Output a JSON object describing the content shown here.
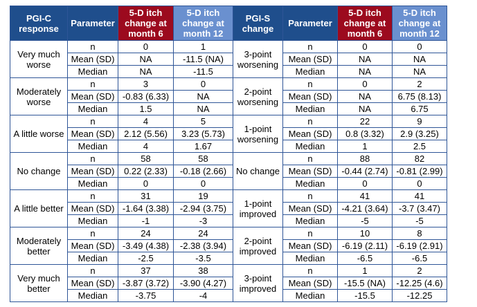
{
  "table": {
    "header": [
      "PGI-C response",
      "Parameter",
      "5-D itch change at month 6",
      "5-D itch change at month 12",
      "PGI-S change",
      "Parameter",
      "5-D itch change at month 6",
      "5-D itch change at month 12"
    ],
    "left": [
      {
        "label": "Very much worse",
        "rows": [
          [
            "n",
            "0",
            "1"
          ],
          [
            "Mean (SD)",
            "NA",
            "-11.5 (NA)"
          ],
          [
            "Median",
            "NA",
            "-11.5"
          ]
        ]
      },
      {
        "label": "Moderately worse",
        "rows": [
          [
            "n",
            "3",
            "0"
          ],
          [
            "Mean (SD)",
            "-0.83 (6.33)",
            "NA"
          ],
          [
            "Median",
            "1.5",
            "NA"
          ]
        ]
      },
      {
        "label": "A little worse",
        "rows": [
          [
            "n",
            "4",
            "5"
          ],
          [
            "Mean (SD)",
            "2.12 (5.56)",
            "3.23 (5.73)"
          ],
          [
            "Median",
            "4",
            "1.67"
          ]
        ]
      },
      {
        "label": "No change",
        "rows": [
          [
            "n",
            "58",
            "58"
          ],
          [
            "Mean (SD)",
            "0.22 (2.33)",
            "-0.18 (2.66)"
          ],
          [
            "Median",
            "0",
            "0"
          ]
        ]
      },
      {
        "label": "A little better",
        "rows": [
          [
            "n",
            "31",
            "19"
          ],
          [
            "Mean (SD)",
            "-1.64 (3.38)",
            "-2.94 (3.75)"
          ],
          [
            "Median",
            "-1",
            "-3"
          ]
        ]
      },
      {
        "label": "Moderately better",
        "rows": [
          [
            "n",
            "24",
            "24"
          ],
          [
            "Mean (SD)",
            "-3.49 (4.38)",
            "-2.38 (3.94)"
          ],
          [
            "Median",
            "-2.5",
            "-3.5"
          ]
        ]
      },
      {
        "label": "Very much better",
        "rows": [
          [
            "n",
            "37",
            "38"
          ],
          [
            "Mean (SD)",
            "-3.87 (3.72)",
            "-3.90 (4.27)"
          ],
          [
            "Median",
            "-3.75",
            "-4"
          ]
        ]
      }
    ],
    "right": [
      {
        "label": "3-point worsening",
        "rows": [
          [
            "n",
            "0",
            "0"
          ],
          [
            "Mean (SD)",
            "NA",
            "NA"
          ],
          [
            "Median",
            "NA",
            "NA"
          ]
        ]
      },
      {
        "label": "2-point worsening",
        "rows": [
          [
            "n",
            "0",
            "2"
          ],
          [
            "Mean (SD)",
            "NA",
            "6.75 (8.13)"
          ],
          [
            "Median",
            "NA",
            "6.75"
          ]
        ]
      },
      {
        "label": "1-point worsening",
        "rows": [
          [
            "n",
            "22",
            "9"
          ],
          [
            "Mean (SD)",
            "0.8 (3.32)",
            "2.9 (3.25)"
          ],
          [
            "Median",
            "1",
            "2.5"
          ]
        ]
      },
      {
        "label": "No change",
        "rows": [
          [
            "n",
            "88",
            "82"
          ],
          [
            "Mean (SD)",
            "-0.44 (2.74)",
            "-0.81 (2.99)"
          ],
          [
            "Median",
            "0",
            "0"
          ]
        ]
      },
      {
        "label": "1-point improved",
        "rows": [
          [
            "n",
            "41",
            "41"
          ],
          [
            "Mean (SD)",
            "-4.21 (3.64)",
            "-3.7 (3.47)"
          ],
          [
            "Median",
            "-5",
            "-5"
          ]
        ]
      },
      {
        "label": "2-point improved",
        "rows": [
          [
            "n",
            "10",
            "8"
          ],
          [
            "Mean (SD)",
            "-6.19 (2.11)",
            "-6.19 (2.91)"
          ],
          [
            "Median",
            "-6.5",
            "-6.5"
          ]
        ]
      },
      {
        "label": "3-point improved",
        "rows": [
          [
            "n",
            "1",
            "2"
          ],
          [
            "Mean (SD)",
            "-15.5 (NA)",
            "-12.25 (4.6)"
          ],
          [
            "Median",
            "-15.5",
            "-12.25"
          ]
        ]
      }
    ]
  }
}
